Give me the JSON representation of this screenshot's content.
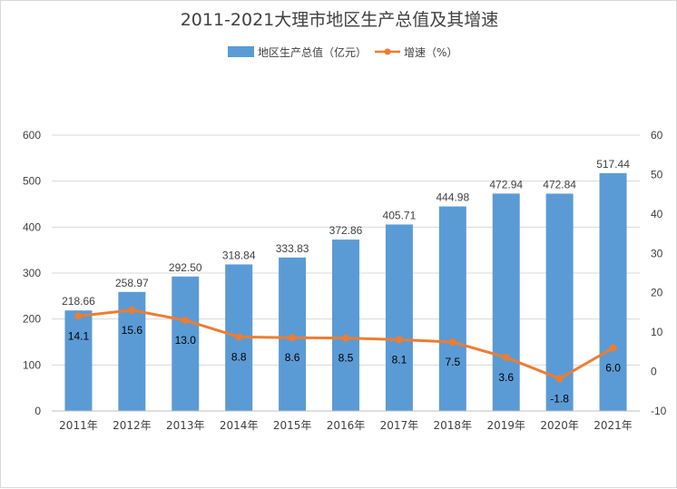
{
  "chart_data": {
    "type": "bar",
    "title": "2011-2021大理市地区生产总值及其增速",
    "categories": [
      "2011年",
      "2012年",
      "2013年",
      "2014年",
      "2015年",
      "2016年",
      "2017年",
      "2018年",
      "2019年",
      "2020年",
      "2021年"
    ],
    "series": [
      {
        "name": "地区生产总值（亿元）",
        "type": "bar",
        "axis": "left",
        "color": "#5b9bd5",
        "values": [
          218.66,
          258.97,
          292.5,
          318.84,
          333.83,
          372.86,
          405.71,
          444.98,
          472.94,
          472.84,
          517.44
        ],
        "labels": [
          "218.66",
          "258.97",
          "292.50",
          "318.84",
          "333.83",
          "372.86",
          "405.71",
          "444.98",
          "472.94",
          "472.84",
          "517.44"
        ]
      },
      {
        "name": "增速（%）",
        "type": "line",
        "axis": "right",
        "color": "#ed7d31",
        "values": [
          14.1,
          15.6,
          13.0,
          8.8,
          8.6,
          8.5,
          8.1,
          7.5,
          3.6,
          -1.8,
          6.0
        ],
        "labels": [
          "14.1",
          "15.6",
          "13.0",
          "8.8",
          "8.6",
          "8.5",
          "8.1",
          "7.5",
          "3.6",
          "-1.8",
          "6.0"
        ]
      }
    ],
    "y_left": {
      "lim": [
        0,
        600
      ],
      "ticks": [
        "0",
        "100",
        "200",
        "300",
        "400",
        "500",
        "600"
      ]
    },
    "y_right": {
      "lim": [
        -10,
        60
      ],
      "ticks": [
        "-10",
        "0",
        "10",
        "20",
        "30",
        "40",
        "50",
        "60"
      ]
    },
    "grid": true,
    "legend_position": "top-center"
  }
}
